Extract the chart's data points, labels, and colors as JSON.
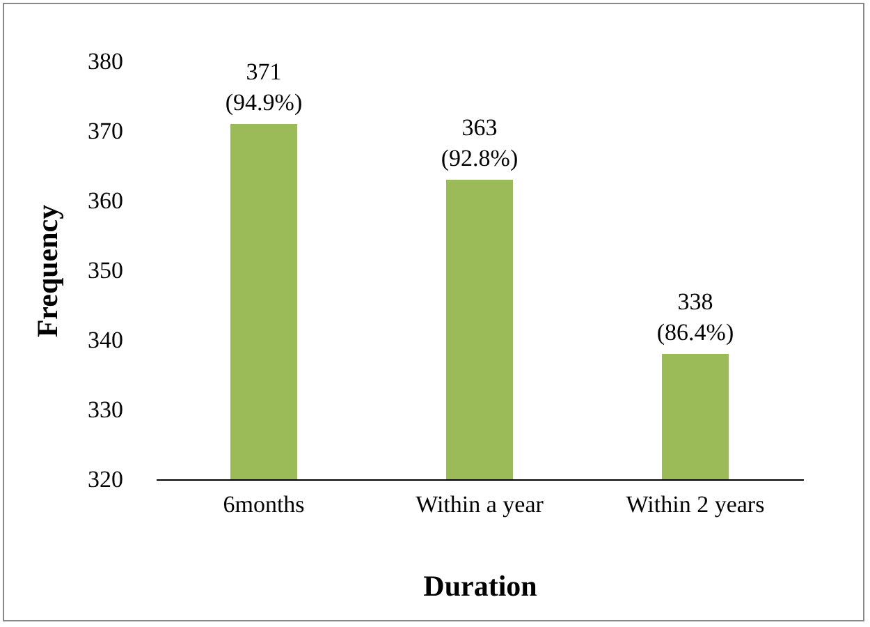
{
  "chart_data": {
    "type": "bar",
    "xlabel": "Duration",
    "ylabel": "Frequency",
    "categories": [
      "6months",
      "Within a year",
      "Within 2 years"
    ],
    "values": [
      371,
      363,
      338
    ],
    "color": "#9bbb59",
    "value_labels": [
      "371 (94.9%)",
      "363 (92.8%)",
      "338 (86.4%)"
    ],
    "ylim": [
      320,
      380
    ],
    "yticks": [
      320,
      330,
      340,
      350,
      360,
      370,
      380
    ],
    "grid": false
  }
}
